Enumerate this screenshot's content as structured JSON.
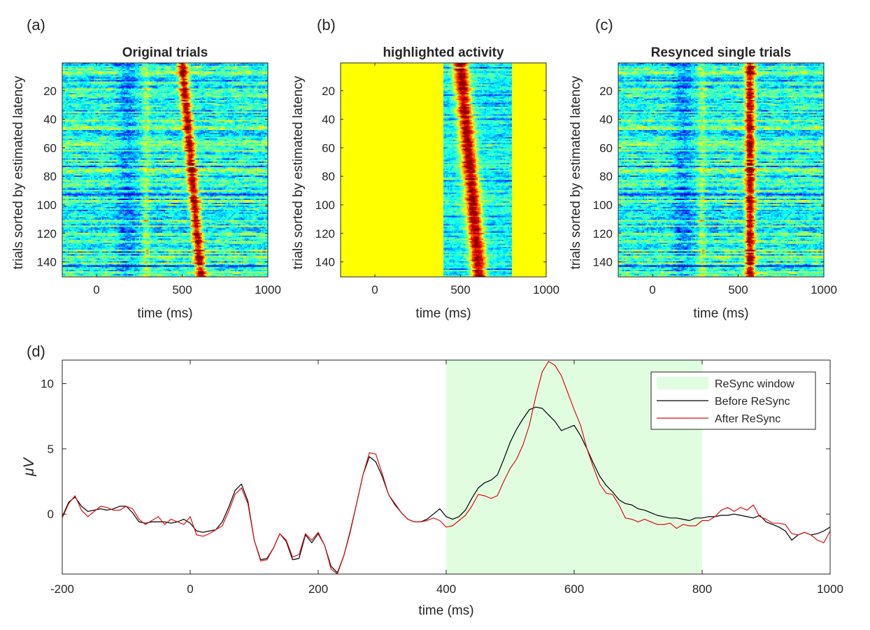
{
  "chart_data": [
    {
      "panel_label": "(a)",
      "type": "heatmap",
      "title": "Original trials",
      "xlabel": "time (ms)",
      "ylabel": "trials sorted by estimated latency",
      "xlim": [
        -200,
        1000
      ],
      "ylim": [
        1,
        150
      ],
      "xticks": [
        0,
        500,
        1000
      ],
      "yticks": [
        20,
        40,
        60,
        80,
        100,
        120,
        140
      ],
      "n_trials": 150,
      "latency_start_ms": 500,
      "latency_end_ms": 610
    },
    {
      "panel_label": "(b)",
      "type": "heatmap",
      "title": "highlighted activity",
      "xlabel": "time (ms)",
      "ylabel": "trials sorted by estimated latency",
      "xlim": [
        -200,
        1000
      ],
      "ylim": [
        1,
        150
      ],
      "xticks": [
        0,
        500,
        1000
      ],
      "yticks": [
        20,
        40,
        60,
        80,
        100,
        120,
        140
      ],
      "n_trials": 150,
      "window_ms": [
        400,
        800
      ],
      "latency_start_ms": 500,
      "latency_end_ms": 610
    },
    {
      "panel_label": "(c)",
      "type": "heatmap",
      "title": "Resynced single trials",
      "xlabel": "time (ms)",
      "ylabel": "trials sorted by estimated latency",
      "xlim": [
        -200,
        1000
      ],
      "ylim": [
        1,
        150
      ],
      "xticks": [
        0,
        500,
        1000
      ],
      "yticks": [
        20,
        40,
        60,
        80,
        100,
        120,
        140
      ],
      "n_trials": 150,
      "latency_ms": 570
    },
    {
      "panel_label": "(d)",
      "type": "line",
      "title": "",
      "xlabel": "time (ms)",
      "ylabel": "μV",
      "xlim": [
        -200,
        1000
      ],
      "ylim": [
        -4.6,
        11.8
      ],
      "xticks": [
        -200,
        0,
        200,
        400,
        600,
        800,
        1000
      ],
      "yticks": [
        0,
        5,
        10
      ],
      "resync_window": [
        400,
        800
      ],
      "legend": [
        "ReSync window",
        "Before ReSync",
        "After ReSync"
      ],
      "x": [
        -200,
        -190,
        -180,
        -170,
        -160,
        -150,
        -140,
        -130,
        -120,
        -110,
        -100,
        -90,
        -80,
        -70,
        -60,
        -50,
        -40,
        -30,
        -20,
        -10,
        0,
        10,
        20,
        30,
        40,
        50,
        60,
        70,
        80,
        90,
        100,
        110,
        120,
        130,
        140,
        150,
        160,
        170,
        180,
        190,
        200,
        210,
        220,
        230,
        240,
        250,
        260,
        270,
        280,
        290,
        300,
        310,
        320,
        330,
        340,
        350,
        360,
        370,
        380,
        390,
        400,
        410,
        420,
        430,
        440,
        450,
        460,
        470,
        480,
        490,
        500,
        510,
        520,
        530,
        540,
        550,
        560,
        570,
        580,
        590,
        600,
        610,
        620,
        630,
        640,
        650,
        660,
        670,
        680,
        690,
        700,
        710,
        720,
        730,
        740,
        750,
        760,
        770,
        780,
        790,
        800,
        810,
        820,
        830,
        840,
        850,
        860,
        870,
        880,
        890,
        900,
        910,
        920,
        930,
        940,
        950,
        960,
        970,
        980,
        990,
        1000
      ],
      "series": [
        {
          "name": "Before ReSync",
          "color": "#000000",
          "values": [
            -0.2,
            0.9,
            1.3,
            0.6,
            0.2,
            0.3,
            0.4,
            0.3,
            0.4,
            0.6,
            0.6,
            0.1,
            -0.6,
            -0.7,
            -0.6,
            -0.6,
            -0.6,
            -0.7,
            -0.6,
            -0.4,
            -0.7,
            -1.3,
            -1.4,
            -1.3,
            -1.2,
            -0.6,
            0.5,
            1.8,
            2.3,
            1.0,
            -2.0,
            -3.5,
            -3.4,
            -2.6,
            -1.5,
            -2.1,
            -3.5,
            -3.4,
            -1.6,
            -2.2,
            -1.5,
            -2.4,
            -4.0,
            -4.5,
            -3.2,
            -1.3,
            0.8,
            3.0,
            4.4,
            4.0,
            2.9,
            1.5,
            0.7,
            0.1,
            -0.4,
            -0.6,
            -0.6,
            -0.4,
            0.0,
            0.4,
            -0.2,
            -0.4,
            -0.2,
            0.3,
            1.2,
            2.0,
            2.4,
            2.6,
            3.0,
            4.2,
            5.5,
            6.5,
            7.3,
            8.0,
            8.2,
            8.1,
            7.6,
            7.1,
            6.4,
            6.6,
            6.8,
            6.0,
            5.0,
            3.9,
            2.9,
            2.2,
            1.7,
            1.1,
            0.8,
            0.7,
            0.4,
            0.3,
            0.1,
            -0.1,
            -0.2,
            -0.3,
            -0.3,
            -0.4,
            -0.5,
            -0.3,
            -0.3,
            -0.2,
            -0.2,
            -0.1,
            -0.1,
            0.0,
            -0.1,
            -0.2,
            -0.3,
            -0.1,
            -0.6,
            -0.8,
            -1.0,
            -1.3,
            -2.0,
            -1.6,
            -1.4,
            -1.6,
            -1.5,
            -1.3,
            -1.0
          ]
        },
        {
          "name": "After ReSync",
          "color": "#e01010",
          "values": [
            -0.3,
            0.8,
            1.4,
            0.3,
            -0.2,
            0.2,
            0.6,
            0.5,
            0.3,
            0.3,
            0.6,
            0.4,
            -0.4,
            -0.8,
            -0.5,
            -0.2,
            -0.8,
            -0.4,
            -0.6,
            -0.8,
            -0.2,
            -1.6,
            -1.7,
            -1.5,
            -1.2,
            -0.9,
            0.2,
            1.5,
            2.0,
            0.8,
            -2.0,
            -3.6,
            -3.5,
            -2.6,
            -1.5,
            -2.0,
            -3.3,
            -3.1,
            -1.5,
            -2.0,
            -1.4,
            -2.4,
            -4.2,
            -4.6,
            -3.2,
            -1.4,
            0.8,
            3.0,
            4.7,
            4.6,
            3.1,
            1.5,
            0.8,
            0.1,
            -0.4,
            -0.6,
            -0.6,
            -0.5,
            -0.3,
            -0.5,
            -1.0,
            -0.9,
            -0.5,
            -0.1,
            0.6,
            1.5,
            1.4,
            1.2,
            1.4,
            2.5,
            3.5,
            4.2,
            5.3,
            6.8,
            9.0,
            10.9,
            11.7,
            11.4,
            10.6,
            9.3,
            8.0,
            6.8,
            5.0,
            3.6,
            2.3,
            1.6,
            1.5,
            0.7,
            -0.3,
            -0.4,
            -0.6,
            -0.4,
            -0.6,
            -0.8,
            -0.8,
            -0.7,
            -1.1,
            -0.8,
            -0.9,
            -0.9,
            -0.5,
            -0.5,
            -0.2,
            0.3,
            0.5,
            0.2,
            0.5,
            0.3,
            0.7,
            -0.2,
            -0.4,
            -0.7,
            -0.7,
            -0.8,
            -1.5,
            -1.6,
            -1.4,
            -1.6,
            -2.0,
            -2.2,
            -1.3
          ]
        }
      ]
    }
  ]
}
